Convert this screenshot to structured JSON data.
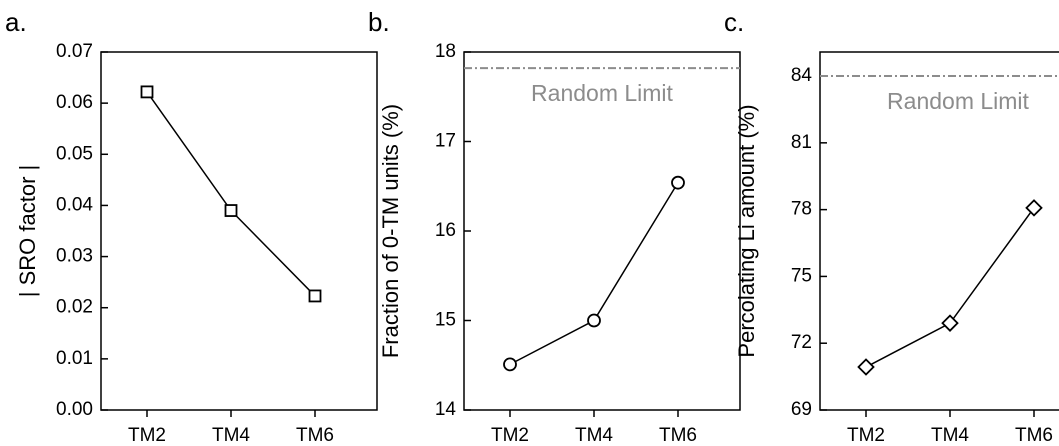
{
  "chart_data": [
    {
      "type": "line",
      "panel_label": "a.",
      "y_label": "| SRO factor |",
      "categories": [
        "TM2",
        "TM4",
        "TM6"
      ],
      "series": [
        {
          "color": "#000000",
          "marker": "square",
          "values": [
            0.0622,
            0.039,
            0.0223
          ]
        }
      ],
      "ylim": [
        0,
        0.07
      ],
      "yticks": [
        {
          "value": 0,
          "label": "0.00"
        },
        {
          "value": 0.01,
          "label": "0.01"
        },
        {
          "value": 0.02,
          "label": "0.02"
        },
        {
          "value": 0.03,
          "label": "0.03"
        },
        {
          "value": 0.04,
          "label": "0.04"
        },
        {
          "value": 0.05,
          "label": "0.05"
        },
        {
          "value": 0.06,
          "label": "0.06"
        },
        {
          "value": 0.07,
          "label": "0.07"
        }
      ]
    },
    {
      "type": "line",
      "panel_label": "b.",
      "y_label": "Fraction of 0-TM units (%)",
      "categories": [
        "TM2",
        "TM4",
        "TM6"
      ],
      "series": [
        {
          "color": "#000000",
          "marker": "circle",
          "values": [
            14.51,
            15.0,
            16.54
          ]
        }
      ],
      "reference_line": {
        "value": 17.82,
        "label": "Random Limit",
        "color": "#8c8c8c"
      },
      "ylim": [
        14,
        18
      ],
      "yticks": [
        14,
        15,
        16,
        17,
        18
      ]
    },
    {
      "type": "line",
      "panel_label": "c.",
      "y_label": "Percolating Li amount (%)",
      "categories": [
        "TM2",
        "TM4",
        "TM6"
      ],
      "series": [
        {
          "color": "#000000",
          "marker": "diamond",
          "values": [
            70.93,
            72.9,
            78.08
          ]
        }
      ],
      "reference_line": {
        "value": 84,
        "label": "Random Limit",
        "color": "#8c8c8c"
      },
      "ylim": [
        69,
        85.08
      ],
      "yticks": [
        69,
        72,
        75,
        78,
        81,
        84
      ]
    }
  ]
}
